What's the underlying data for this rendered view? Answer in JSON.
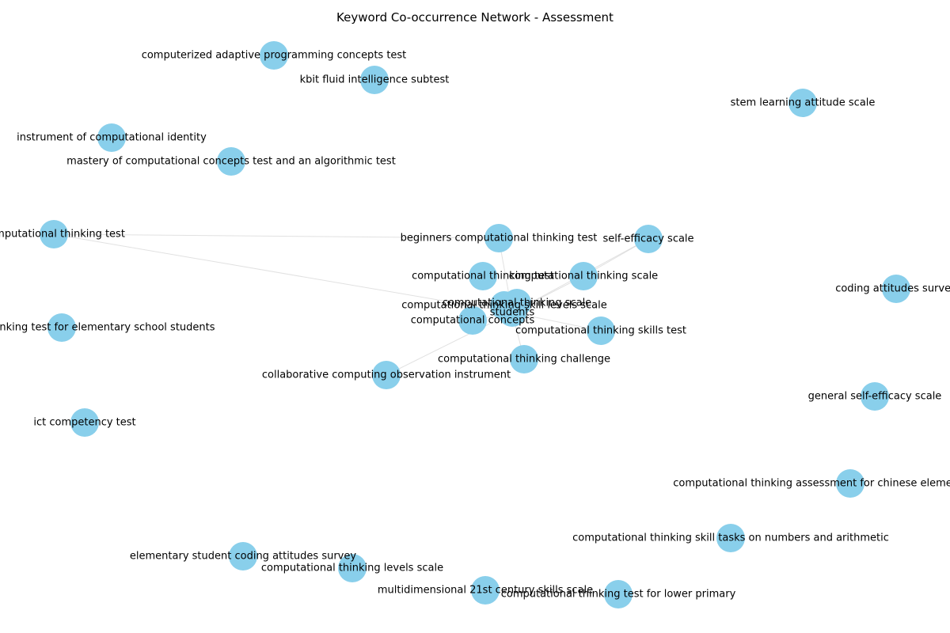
{
  "title": "Keyword Co-occurrence Network - Assessment",
  "colors": {
    "node": "#89CFEB",
    "edge": "#c8c8c8",
    "text": "#000000",
    "background": "#ffffff"
  },
  "nodes": [
    "computerized adaptive programming concepts test",
    "kbit fluid intelligence subtest",
    "stem learning attitude scale",
    "instrument of computational identity",
    "mastery of computational concepts test and an algorithmic test",
    "computational thinking test",
    "beginners computational thinking test",
    "self-efficacy scale",
    "computational thinking test",
    "computational thinking scale",
    "coding attitudes survey",
    "computational thinking scale",
    "computational thinking skill levels scale",
    "students",
    "computational concepts",
    "computational thinking skills test",
    "computational thinking test for elementary school students",
    "computational thinking challenge",
    "collaborative computing observation instrument",
    "general self-efficacy scale",
    "ict competency test",
    "computational thinking assessment for chinese elementary students",
    "computational thinking skill tasks on numbers and arithmetic",
    "elementary student coding attitudes survey",
    "computational thinking levels scale",
    "multidimensional 21st century skills scale",
    "computational thinking test for lower primary"
  ],
  "edges": [
    [
      "students",
      "beginners computational thinking test"
    ],
    [
      "students",
      "self-efficacy scale"
    ],
    [
      "students",
      "computational thinking test"
    ],
    [
      "students",
      "computational thinking scale"
    ],
    [
      "students",
      "computational thinking skill levels scale"
    ],
    [
      "students",
      "computational concepts"
    ],
    [
      "students",
      "computational thinking skills test"
    ],
    [
      "students",
      "computational thinking challenge"
    ],
    [
      "students",
      "collaborative computing observation instrument"
    ],
    [
      "computational thinking scale",
      "self-efficacy scale"
    ],
    [
      "computational thinking test",
      "beginners computational thinking test"
    ],
    [
      "multidimensional 21st century skills scale",
      "computational thinking test for lower primary"
    ]
  ]
}
